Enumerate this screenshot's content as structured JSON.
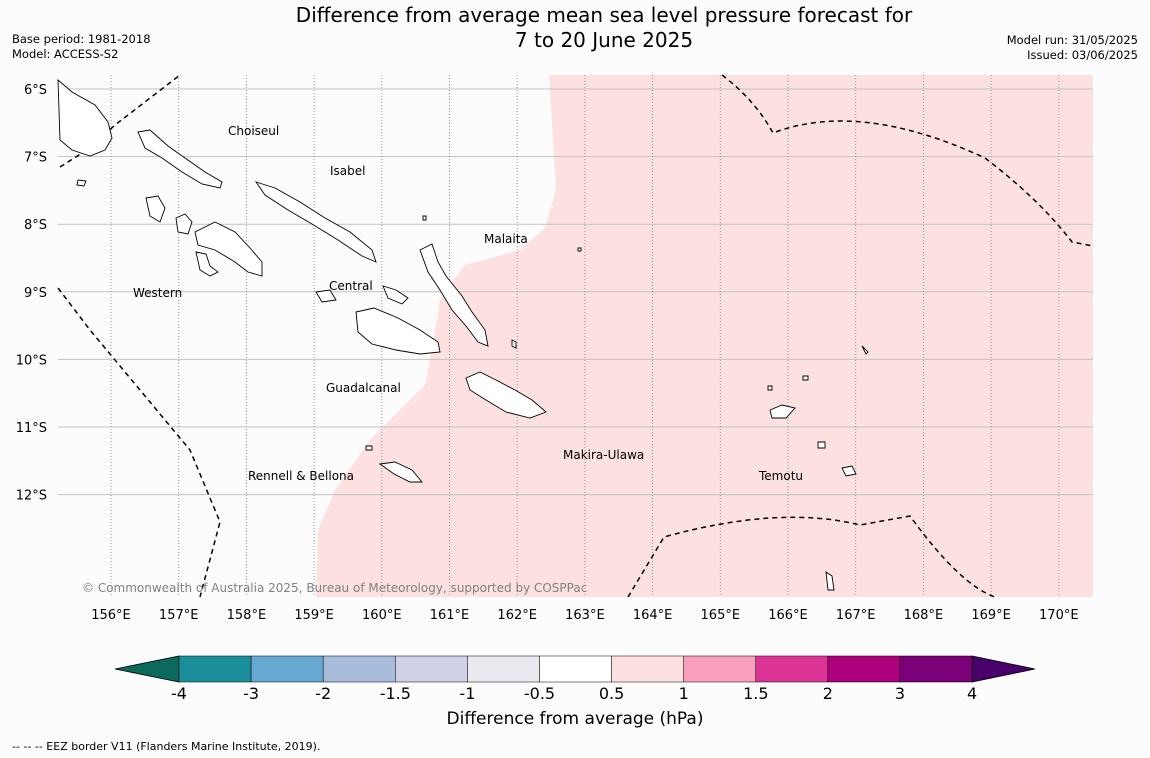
{
  "title_line1": "Difference from average mean sea level pressure forecast for",
  "title_line2": "7 to 20 June 2025",
  "meta_left": {
    "base_period": "Base period: 1981-2018",
    "model": "Model: ACCESS-S2"
  },
  "meta_right": {
    "model_run": "Model run: 31/05/2025",
    "issued": "Issued: 03/06/2025"
  },
  "copyright": "© Commonwealth of Australia 2025, Bureau of Meteorology, supported by COSPPac",
  "lat_labels": [
    "6°S",
    "7°S",
    "8°S",
    "9°S",
    "10°S",
    "11°S",
    "12°S"
  ],
  "lon_labels": [
    "156°E",
    "157°E",
    "158°E",
    "159°E",
    "160°E",
    "161°E",
    "162°E",
    "163°E",
    "164°E",
    "165°E",
    "166°E",
    "167°E",
    "168°E",
    "169°E",
    "170°E"
  ],
  "region_labels": [
    {
      "name": "Choiseul"
    },
    {
      "name": "Isabel"
    },
    {
      "name": "Malaita"
    },
    {
      "name": "Western"
    },
    {
      "name": "Central"
    },
    {
      "name": "Guadalcanal"
    },
    {
      "name": "Makira-Ulawa"
    },
    {
      "name": "Rennell & Bellona"
    },
    {
      "name": "Temotu"
    }
  ],
  "colorbar": {
    "title": "Difference from average (hPa)",
    "ticks": [
      "-4",
      "-3",
      "-2",
      "-1.5",
      "-1",
      "-0.5",
      "0.5",
      "1",
      "1.5",
      "2",
      "3",
      "4"
    ],
    "colors": [
      "#1a8f99",
      "#66a8d0",
      "#a8bcdc",
      "#d0d0e6",
      "#ebe9ef",
      "#ffffff",
      "#fde0e0",
      "#f89fbc",
      "#dd3497",
      "#ae017e",
      "#7a0177"
    ],
    "under_color": "#0b6a5c",
    "over_color": "#49006a"
  },
  "footnote": "--  --  -- EEZ border V11 (Flanders Marine Institute, 2019).",
  "chart_data": {
    "type": "heatmap",
    "title": "Difference from average mean sea level pressure forecast for 7 to 20 June 2025",
    "xlabel": "",
    "ylabel": "",
    "xlim": [
      155.5,
      170.5
    ],
    "ylim": [
      -13.5,
      -5.8
    ],
    "field_class": "0.5 to 1 hPa",
    "colorbar_label": "Difference from average (hPa)",
    "colorbar_levels": [
      -4,
      -3,
      -2,
      -1.5,
      -1,
      -0.5,
      0.5,
      1,
      1.5,
      2,
      3,
      4
    ]
  }
}
